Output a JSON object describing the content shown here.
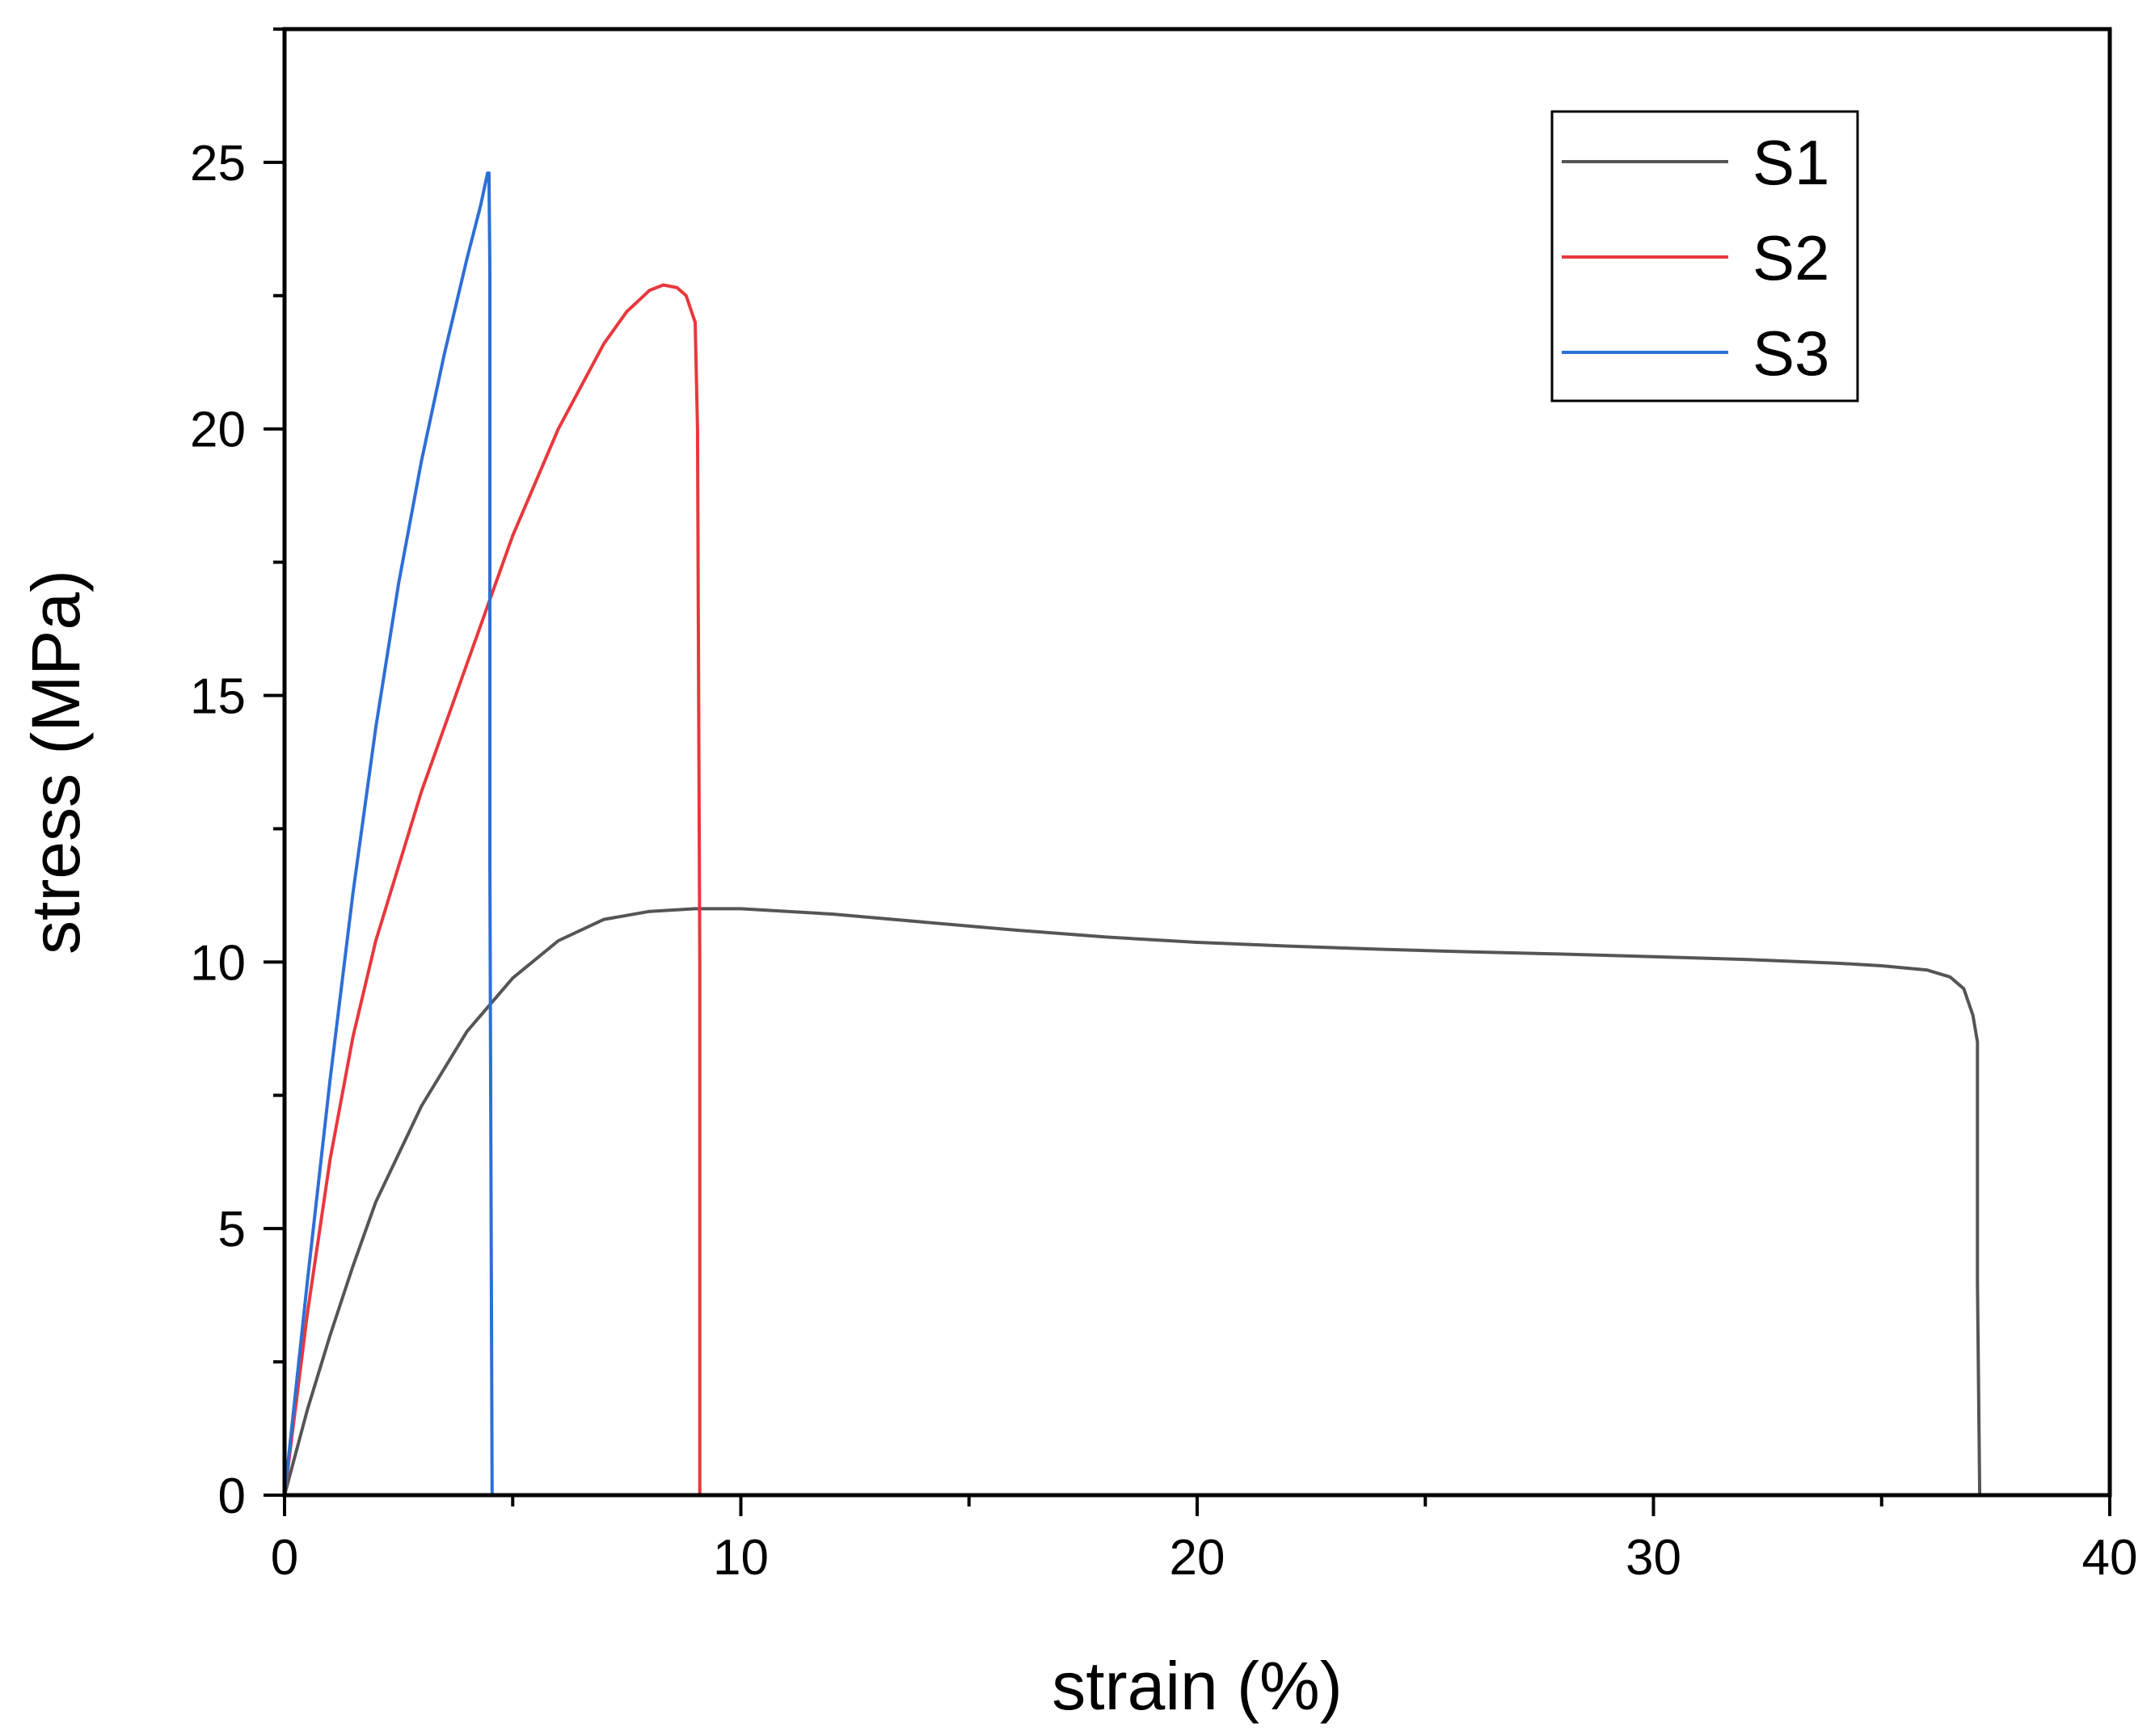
{
  "chart_data": {
    "type": "line",
    "title": "",
    "xlabel": "strain (%)",
    "ylabel": "stress (MPa)",
    "xlim": [
      0,
      40
    ],
    "ylim": [
      0,
      27.5
    ],
    "xticks": [
      0,
      10,
      20,
      30,
      40
    ],
    "yticks": [
      0,
      5,
      10,
      15,
      20,
      25
    ],
    "x_minor_step": 5,
    "y_minor_step": 2.5,
    "grid": false,
    "legend_position": "top-right",
    "series": [
      {
        "name": "S1",
        "color": "#555555",
        "x": [
          0,
          0.5,
          1,
          1.5,
          2,
          3,
          4,
          5,
          6,
          7,
          8,
          9,
          10,
          12,
          14,
          16,
          18,
          20,
          22,
          24,
          26,
          28,
          30,
          32,
          34,
          35,
          36,
          36.5,
          36.8,
          37.0,
          37.1,
          37.1,
          37.15
        ],
        "values": [
          0,
          1.6,
          3.0,
          4.3,
          5.5,
          7.3,
          8.7,
          9.7,
          10.4,
          10.8,
          10.95,
          11.0,
          11.0,
          10.9,
          10.75,
          10.6,
          10.47,
          10.37,
          10.3,
          10.24,
          10.19,
          10.15,
          10.1,
          10.05,
          9.98,
          9.93,
          9.85,
          9.72,
          9.5,
          9.0,
          8.5,
          4.0,
          0
        ]
      },
      {
        "name": "S2",
        "color": "#e8383d",
        "x": [
          0,
          0.5,
          1,
          1.5,
          2,
          3,
          4,
          5,
          6,
          7,
          7.5,
          8,
          8.3,
          8.6,
          8.8,
          9.0,
          9.05,
          9.1,
          9.1
        ],
        "values": [
          0,
          3.4,
          6.3,
          8.6,
          10.4,
          13.2,
          15.6,
          18.0,
          20.0,
          21.6,
          22.2,
          22.6,
          22.7,
          22.65,
          22.5,
          22.0,
          20.0,
          10.0,
          0
        ]
      },
      {
        "name": "S3",
        "color": "#2e6fd6",
        "x": [
          0,
          0.5,
          1,
          1.5,
          2,
          2.5,
          3,
          3.5,
          4,
          4.3,
          4.45,
          4.48,
          4.5,
          4.5,
          4.55
        ],
        "values": [
          0,
          4.0,
          7.8,
          11.3,
          14.4,
          17.1,
          19.4,
          21.4,
          23.2,
          24.2,
          24.8,
          24.8,
          23.0,
          12.0,
          0
        ]
      }
    ]
  }
}
